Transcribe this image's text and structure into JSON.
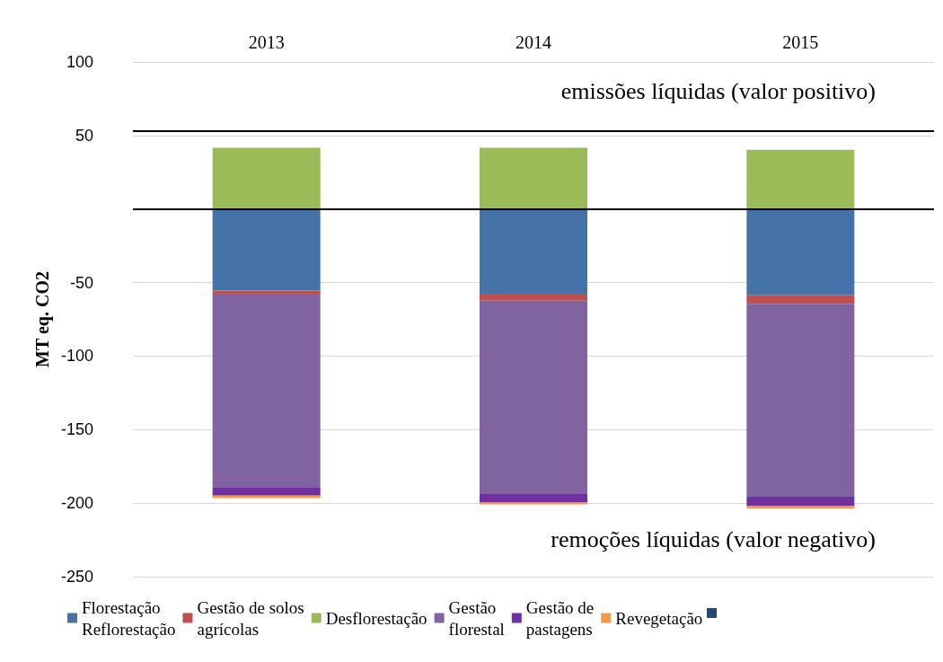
{
  "chart_data": {
    "type": "bar",
    "stacked": true,
    "ylabel": "MT eq. CO2",
    "categories": [
      "2013",
      "2014",
      "2015"
    ],
    "series": [
      {
        "name": "Florestação Reflorestação",
        "color": "#4573a7",
        "values": [
          -55.4,
          -57.6,
          -58.6
        ]
      },
      {
        "name": "Gestão de solos agrícolas",
        "color": "#c0504d",
        "values": [
          -2.2,
          -4.8,
          -5.8
        ]
      },
      {
        "name": "Desflorestação",
        "color": "#9bbb59",
        "values": [
          41.6,
          41.6,
          40.3
        ]
      },
      {
        "name": "Gestão florestal",
        "color": "#8064a2",
        "values": [
          -131.4,
          -131.4,
          -131.3
        ]
      },
      {
        "name": "Gestão de pastagens",
        "color": "#7030a0",
        "values": [
          -5.8,
          -5.5,
          -6.4
        ]
      },
      {
        "name": "Revegetação",
        "color": "#f79646",
        "values": [
          -1.8,
          -1.6,
          -1.6
        ]
      }
    ],
    "ylim": [
      -250,
      100
    ],
    "yticks": [
      -250,
      -200,
      -150,
      -100,
      -50,
      {
        "value": 0,
        "label": null
      },
      50,
      100
    ],
    "grid": "y",
    "legend": "bottom",
    "ref_lines": [
      {
        "axis": "y",
        "value": 0,
        "color": "#000000"
      },
      {
        "axis": "y",
        "value": 53,
        "color": "#000000"
      }
    ],
    "annotations": [
      "emissões líquidas (valor positivo)",
      "remoções líquidas (valor negativo)"
    ]
  }
}
